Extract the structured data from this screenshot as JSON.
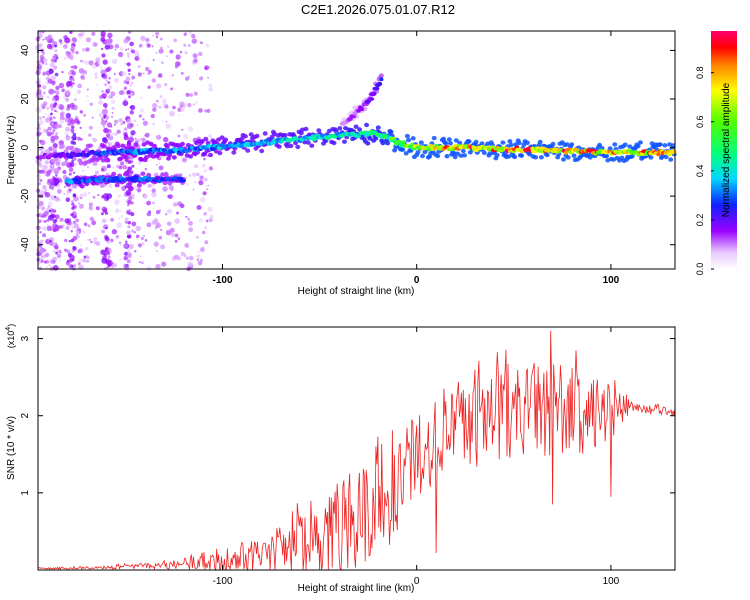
{
  "title": "C2E1.2026.075.01.07.R12",
  "chart_data": [
    {
      "type": "heatmap",
      "name": "spectrogram",
      "xlabel": "Height of straight line (km)",
      "ylabel": "Frequency (Hz)",
      "xlim": [
        -195,
        133
      ],
      "ylim": [
        -50,
        48
      ],
      "xticks": [
        -100,
        0,
        100
      ],
      "xtick_labels": [
        "-100",
        "0",
        "100"
      ],
      "yticks": [
        -40,
        -20,
        0,
        20,
        40
      ],
      "ytick_labels": [
        "-40",
        "-20",
        "0",
        "20",
        "40"
      ],
      "colorbar": {
        "label": "Normalized spectral amplitude",
        "range": [
          0,
          0.97
        ],
        "ticks": [
          0.0,
          0.2,
          0.4,
          0.6,
          0.8
        ],
        "tick_labels": [
          "0.0",
          "0.2",
          "0.4",
          "0.6",
          "0.8"
        ]
      },
      "bands": [
        {
          "name": "main-band",
          "x": [
            -195,
            -160,
            -120,
            -80,
            -40,
            -20,
            -10,
            0,
            20,
            60,
            100,
            133
          ],
          "freq": [
            -4,
            -2,
            -1,
            2,
            5,
            6,
            2,
            0,
            0,
            -1,
            -2,
            -2
          ],
          "amplitude": [
            0.15,
            0.3,
            0.35,
            0.4,
            0.45,
            0.5,
            0.6,
            0.7,
            0.85,
            0.9,
            0.85,
            0.8
          ]
        },
        {
          "name": "lower-band",
          "x": [
            -180,
            -160,
            -140,
            -120
          ],
          "freq": [
            -14,
            -13,
            -13,
            -13
          ],
          "amplitude": [
            0.35,
            0.3,
            0.3,
            0.25
          ]
        },
        {
          "name": "chirp-branch",
          "x": [
            -38,
            -30,
            -24,
            -18
          ],
          "freq": [
            10,
            15,
            20,
            28
          ],
          "amplitude": [
            0.12,
            0.15,
            0.2,
            0.25
          ]
        }
      ]
    },
    {
      "type": "line",
      "name": "snr",
      "xlabel": "Height of straight line (km)",
      "ylabel": "SNR (10 * v/v)",
      "multiplier_label": "(x10",
      "multiplier_exp": "4",
      "multiplier_close": ")",
      "xlim": [
        -195,
        133
      ],
      "ylim": [
        0,
        3.15
      ],
      "xticks": [
        -100,
        0,
        100
      ],
      "xtick_labels": [
        "-100",
        "0",
        "100"
      ],
      "yticks": [
        1,
        2,
        3
      ],
      "ytick_labels": [
        "1",
        "2",
        "3"
      ],
      "color": "#ee2222",
      "series": [
        {
          "name": "SNR",
          "x": [
            -195,
            -160,
            -130,
            -110,
            -90,
            -80,
            -70,
            -60,
            -50,
            -40,
            -30,
            -20,
            -15,
            -10,
            -5,
            0,
            5,
            10,
            20,
            30,
            40,
            50,
            60,
            70,
            80,
            90,
            100,
            110,
            120,
            133
          ],
          "mean": [
            0.02,
            0.03,
            0.06,
            0.1,
            0.15,
            0.2,
            0.28,
            0.35,
            0.42,
            0.55,
            0.7,
            0.85,
            1.0,
            1.15,
            1.3,
            1.45,
            1.5,
            1.7,
            1.85,
            1.9,
            2.0,
            2.05,
            2.1,
            2.1,
            2.05,
            2.0,
            2.0,
            2.1,
            2.08,
            2.05
          ],
          "spread": [
            0.01,
            0.02,
            0.05,
            0.1,
            0.18,
            0.22,
            0.3,
            0.4,
            0.5,
            0.6,
            0.7,
            0.8,
            0.8,
            0.7,
            0.6,
            0.5,
            0.5,
            0.6,
            0.6,
            0.6,
            0.6,
            0.6,
            0.6,
            0.65,
            0.6,
            0.5,
            0.4,
            0.08,
            0.06,
            0.05
          ],
          "peaks": [
            {
              "x": 10,
              "y": 0.22
            },
            {
              "x": 69,
              "y": 3.1
            },
            {
              "x": 100,
              "y": 0.95
            },
            {
              "x": 70,
              "y": 0.85
            }
          ]
        }
      ]
    }
  ]
}
